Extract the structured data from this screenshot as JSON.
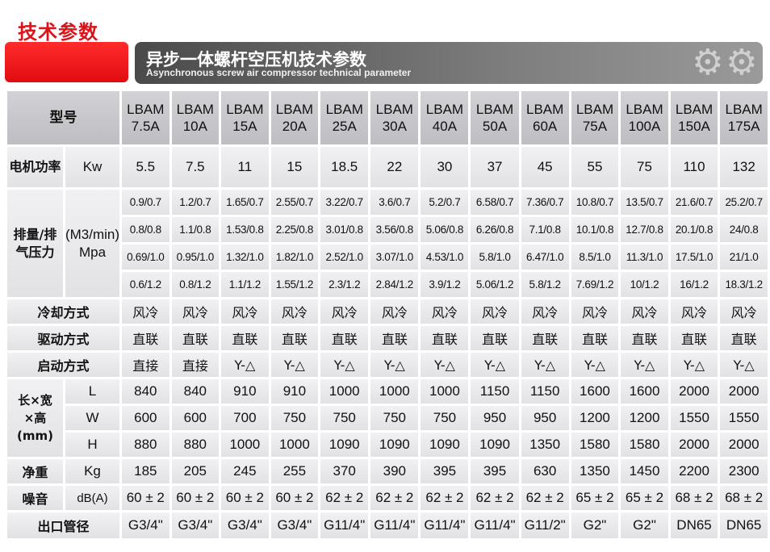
{
  "page_title": "技术参数",
  "banner": {
    "title_cn": "异步一体螺杆空压机技术参数",
    "title_en": "Asynchronous screw air compressor technical parameter",
    "icon": "gears-icon"
  },
  "table": {
    "header_label": "型号",
    "models": [
      "LBAM 7.5A",
      "LBAM 10A",
      "LBAM 15A",
      "LBAM 20A",
      "LBAM 25A",
      "LBAM 30A",
      "LBAM 40A",
      "LBAM 50A",
      "LBAM 60A",
      "LBAM 75A",
      "LBAM 100A",
      "LBAM 150A",
      "LBAM 175A"
    ],
    "power": {
      "label": "电机功率",
      "unit": "Kw",
      "values": [
        "5.5",
        "7.5",
        "11",
        "15",
        "18.5",
        "22",
        "30",
        "37",
        "45",
        "55",
        "75",
        "110",
        "132"
      ]
    },
    "flow": {
      "label": "排量/排气压力",
      "unit": "(M3/min) Mpa",
      "rows": [
        [
          "0.9/0.7",
          "1.2/0.7",
          "1.65/0.7",
          "2.55/0.7",
          "3.22/0.7",
          "3.6/0.7",
          "5.2/0.7",
          "6.58/0.7",
          "7.36/0.7",
          "10.8/0.7",
          "13.5/0.7",
          "21.6/0.7",
          "25.2/0.7"
        ],
        [
          "0.8/0.8",
          "1.1/0.8",
          "1.53/0.8",
          "2.25/0.8",
          "3.01/0.8",
          "3.56/0.8",
          "5.06/0.8",
          "6.26/0.8",
          "7.1/0.8",
          "10.1/0.8",
          "12.7/0.8",
          "20.1/0.8",
          "24/0.8"
        ],
        [
          "0.69/1.0",
          "0.95/1.0",
          "1.32/1.0",
          "1.82/1.0",
          "2.52/1.0",
          "3.07/1.0",
          "4.53/1.0",
          "5.8/1.0",
          "6.47/1.0",
          "8.5/1.0",
          "11.3/1.0",
          "17.5/1.0",
          "21/1.0"
        ],
        [
          "0.6/1.2",
          "0.8/1.2",
          "1.1/1.2",
          "1.55/1.2",
          "2.3/1.2",
          "2.84/1.2",
          "3.9/1.2",
          "5.06/1.2",
          "5.8/1.2",
          "7.69/1.2",
          "10/1.2",
          "16/1.2",
          "18.3/1.2"
        ]
      ]
    },
    "cooling": {
      "label": "冷却方式",
      "values": [
        "风冷",
        "风冷",
        "风冷",
        "风冷",
        "风冷",
        "风冷",
        "风冷",
        "风冷",
        "风冷",
        "风冷",
        "风冷",
        "风冷",
        "风冷"
      ]
    },
    "drive": {
      "label": "驱动方式",
      "values": [
        "直联",
        "直联",
        "直联",
        "直联",
        "直联",
        "直联",
        "直联",
        "直联",
        "直联",
        "直联",
        "直联",
        "直联",
        "直联"
      ]
    },
    "start": {
      "label": "启动方式",
      "values": [
        "直接",
        "直接",
        "Y-△",
        "Y-△",
        "Y-△",
        "Y-△",
        "Y-△",
        "Y-△",
        "Y-△",
        "Y-△",
        "Y-△",
        "Y-△",
        "Y-△"
      ]
    },
    "dimensions": {
      "label": "长×宽×高(mm)",
      "rows": [
        {
          "unit": "L",
          "values": [
            "840",
            "840",
            "910",
            "910",
            "1000",
            "1000",
            "1000",
            "1150",
            "1150",
            "1600",
            "1600",
            "2000",
            "2000"
          ]
        },
        {
          "unit": "W",
          "values": [
            "600",
            "600",
            "700",
            "750",
            "750",
            "750",
            "750",
            "950",
            "950",
            "1200",
            "1200",
            "1550",
            "1550"
          ]
        },
        {
          "unit": "H",
          "values": [
            "880",
            "880",
            "1000",
            "1000",
            "1090",
            "1090",
            "1090",
            "1090",
            "1350",
            "1580",
            "1580",
            "2000",
            "2000"
          ]
        }
      ]
    },
    "weight": {
      "label": "净重",
      "unit": "Kg",
      "values": [
        "185",
        "205",
        "245",
        "255",
        "370",
        "390",
        "395",
        "395",
        "630",
        "1350",
        "1450",
        "2200",
        "2300"
      ]
    },
    "noise": {
      "label": "噪音",
      "unit": "dB(A)",
      "values": [
        "60 ± 2",
        "60 ± 2",
        "60 ± 2",
        "60 ± 2",
        "62 ± 2",
        "62 ± 2",
        "62 ± 2",
        "62 ± 2",
        "62 ± 2",
        "65 ± 2",
        "65 ± 2",
        "68 ± 2",
        "68 ± 2"
      ]
    },
    "outlet": {
      "label": "出口管径",
      "values": [
        "G3/4\"",
        "G3/4\"",
        "G3/4\"",
        "G3/4\"",
        "G11/4\"",
        "G11/4\"",
        "G11/4\"",
        "G11/4\"",
        "G11/2\"",
        "G2\"",
        "G2\"",
        "DN65",
        "DN65"
      ]
    }
  },
  "colors": {
    "accent": "#d9141a",
    "banner": "#6a6a6a",
    "header_cell": "#c8c8cc",
    "cell": "#e8e8ea"
  }
}
